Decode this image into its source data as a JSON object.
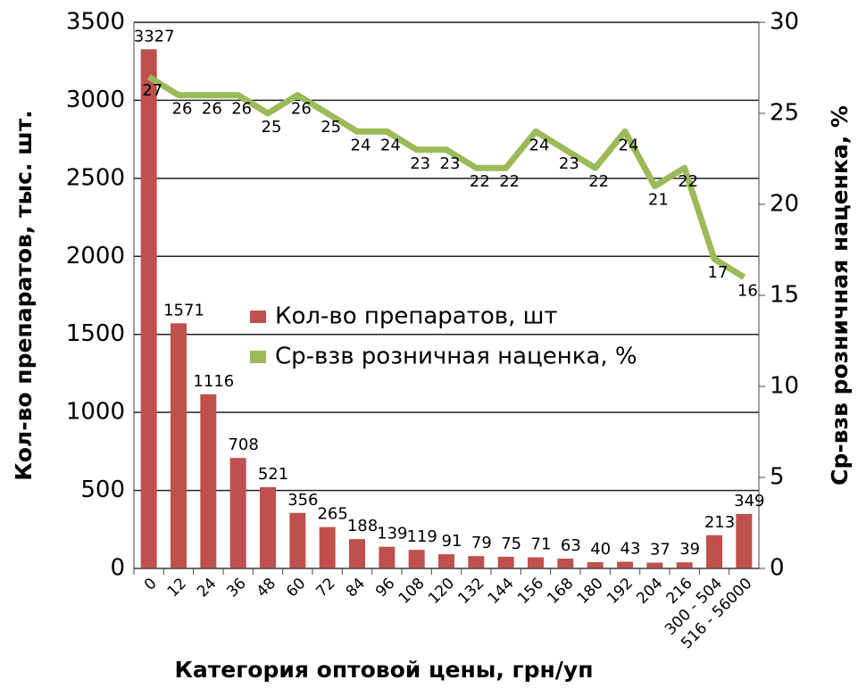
{
  "chart_data": {
    "type": "bar",
    "x_label": "Категория оптовой цены, грн/уп",
    "y_label": "Кол-во препаратов, тыс. шт.",
    "y2_label": "Ср-взв розничная наценка, %",
    "categories": [
      "0",
      "12",
      "24",
      "36",
      "48",
      "60",
      "72",
      "84",
      "96",
      "108",
      "120",
      "132",
      "144",
      "156",
      "168",
      "180",
      "192",
      "204",
      "216",
      "300 - 504",
      "516 - 56000"
    ],
    "series": [
      {
        "name": "Кол-во препаратов, шт",
        "type": "bar",
        "color": "#c0504d",
        "values": [
          3327,
          1571,
          1116,
          708,
          521,
          356,
          265,
          188,
          139,
          119,
          91,
          79,
          75,
          71,
          63,
          40,
          43,
          37,
          39,
          213,
          349
        ]
      },
      {
        "name": "Ср-взв розничная наценка, %",
        "type": "line",
        "axis": "y2",
        "color": "#9bbb59",
        "values": [
          27,
          26,
          26,
          26,
          25,
          26,
          25,
          24,
          24,
          23,
          23,
          22,
          22,
          24,
          23,
          22,
          24,
          21,
          22,
          17,
          16
        ]
      }
    ],
    "ylim": [
      0,
      3500
    ],
    "yticks": [
      0,
      500,
      1000,
      1500,
      2000,
      2500,
      3000,
      3500
    ],
    "y2lim": [
      0,
      30
    ],
    "y2ticks": [
      0,
      5,
      10,
      15,
      20,
      25,
      30
    ],
    "grid": true,
    "legend": "center"
  }
}
